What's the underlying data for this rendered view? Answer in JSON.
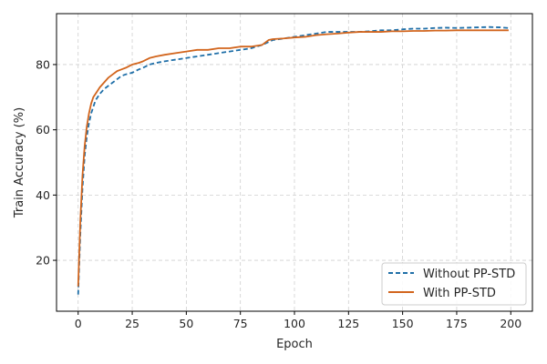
{
  "chart_data": {
    "type": "line",
    "title": "",
    "xlabel": "Epoch",
    "ylabel": "Train Accuracy (%)",
    "xlim": [
      -10,
      210
    ],
    "ylim": [
      4.4,
      95.6
    ],
    "xticks": [
      0,
      25,
      50,
      75,
      100,
      125,
      150,
      175,
      200
    ],
    "yticks": [
      20,
      40,
      60,
      80
    ],
    "grid": true,
    "legend_position": "lower-right",
    "series": [
      {
        "name": "Without PP-STD",
        "color": "#1f6fa8",
        "linestyle": "dashed",
        "x": [
          0,
          1,
          2,
          3,
          4,
          5,
          6,
          7,
          8,
          10,
          12,
          14,
          16,
          18,
          20,
          22,
          25,
          28,
          30,
          33,
          36,
          40,
          45,
          50,
          55,
          60,
          65,
          70,
          75,
          80,
          85,
          90,
          95,
          100,
          105,
          110,
          115,
          120,
          125,
          130,
          135,
          140,
          145,
          150,
          155,
          160,
          165,
          170,
          175,
          180,
          185,
          190,
          195,
          199
        ],
        "values": [
          9.5,
          28,
          42,
          52,
          58,
          62,
          65,
          67,
          69,
          71,
          72.5,
          73.5,
          74.5,
          75.5,
          76.5,
          77,
          77.5,
          78.5,
          79,
          80,
          80.5,
          81,
          81.5,
          82,
          82.5,
          83,
          83.5,
          84,
          84.5,
          85,
          86,
          87.5,
          88,
          88.5,
          89,
          89.5,
          90,
          90,
          90,
          90,
          90.2,
          90.5,
          90.5,
          90.8,
          91,
          91,
          91.2,
          91.3,
          91.2,
          91.3,
          91.4,
          91.5,
          91.4,
          91.2
        ]
      },
      {
        "name": "With PP-STD",
        "color": "#d2651d",
        "linestyle": "solid",
        "x": [
          0,
          1,
          2,
          3,
          4,
          5,
          6,
          7,
          8,
          10,
          12,
          14,
          16,
          18,
          20,
          22,
          25,
          28,
          30,
          33,
          36,
          40,
          45,
          50,
          55,
          60,
          65,
          70,
          75,
          80,
          85,
          88,
          90,
          95,
          100,
          105,
          110,
          115,
          120,
          125,
          130,
          135,
          140,
          145,
          150,
          155,
          160,
          165,
          170,
          175,
          180,
          185,
          190,
          195,
          199
        ],
        "values": [
          12,
          32,
          46,
          55,
          61,
          65,
          68,
          70,
          71,
          73,
          74.5,
          76,
          77,
          78,
          78.5,
          79,
          80,
          80.5,
          81,
          82,
          82.5,
          83,
          83.5,
          84,
          84.5,
          84.5,
          85,
          85,
          85.5,
          85.5,
          86,
          87.5,
          87.8,
          88,
          88.3,
          88.5,
          89,
          89.3,
          89.5,
          89.8,
          90,
          90,
          90,
          90.2,
          90.2,
          90.3,
          90.3,
          90.4,
          90.4,
          90.5,
          90.5,
          90.5,
          90.5,
          90.5,
          90.5
        ]
      }
    ]
  }
}
